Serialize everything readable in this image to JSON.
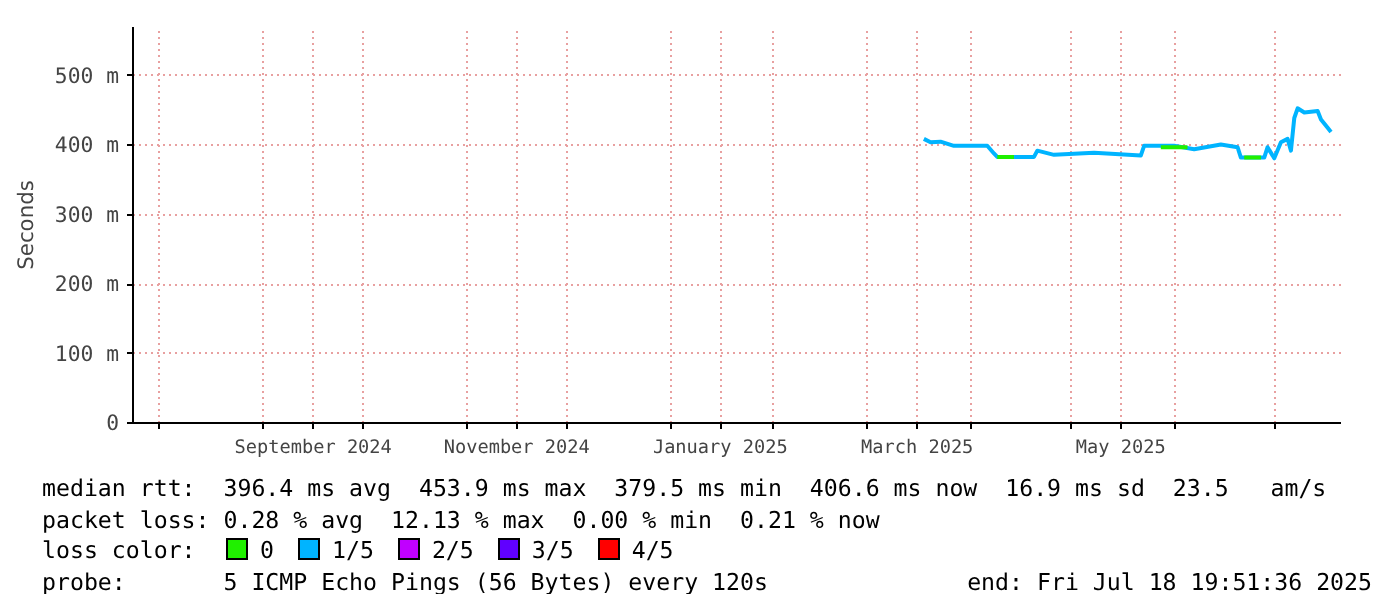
{
  "chart_data": {
    "type": "line",
    "ylabel": "Seconds",
    "xlim": [
      "2024-07-24",
      "2025-07-21"
    ],
    "xticks": [
      {
        "value": "2024-08-01",
        "label": null
      },
      {
        "value": "2024-09-01",
        "label": null
      },
      {
        "value": "2024-09-16",
        "label": "September 2024"
      },
      {
        "value": "2024-10-01",
        "label": null
      },
      {
        "value": "2024-11-01",
        "label": null
      },
      {
        "value": "2024-11-16",
        "label": "November 2024"
      },
      {
        "value": "2024-12-01",
        "label": null
      },
      {
        "value": "2025-01-01",
        "label": null
      },
      {
        "value": "2025-01-16",
        "label": "January 2025"
      },
      {
        "value": "2025-02-01",
        "label": null
      },
      {
        "value": "2025-03-01",
        "label": null
      },
      {
        "value": "2025-03-16",
        "label": "March 2025"
      },
      {
        "value": "2025-04-01",
        "label": null
      },
      {
        "value": "2025-05-01",
        "label": null
      },
      {
        "value": "2025-05-16",
        "label": "May 2025"
      },
      {
        "value": "2025-06-01",
        "label": null
      },
      {
        "value": "2025-07-01",
        "label": null
      }
    ],
    "ylim": [
      0,
      570
    ],
    "yticks": [
      0,
      {
        "value": 100,
        "label": "100 m"
      },
      {
        "value": 200,
        "label": "200 m"
      },
      {
        "value": 300,
        "label": "300 m"
      },
      {
        "value": 400,
        "label": "400 m"
      },
      {
        "value": 500,
        "label": "500 m"
      }
    ],
    "grid": true,
    "legend": "bottom",
    "legend_title": "loss color:",
    "series": [
      {
        "name": "0",
        "color": "#20f000",
        "x": [
          "2025-04-09",
          "2025-04-14",
          "2025-04-15",
          "2025-05-28",
          "2025-06-05",
          "2025-06-06",
          "2025-06-22",
          "2025-06-27"
        ],
        "values": [
          383,
          383,
          null,
          397,
          397,
          null,
          382,
          382
        ]
      },
      {
        "name": "1/5",
        "color": "#00b4ff",
        "x": [
          "2025-03-18",
          "2025-03-20",
          "2025-03-23",
          "2025-03-27",
          "2025-04-06",
          "2025-04-08",
          "2025-04-09",
          "2025-04-20",
          "2025-04-21",
          "2025-04-26",
          "2025-05-08",
          "2025-05-22",
          "2025-05-23",
          "2025-06-01",
          "2025-06-07",
          "2025-06-15",
          "2025-06-20",
          "2025-06-21",
          "2025-06-28",
          "2025-06-29",
          "2025-07-01",
          "2025-07-03",
          "2025-07-05",
          "2025-07-06",
          "2025-07-07",
          "2025-07-08",
          "2025-07-10",
          "2025-07-14",
          "2025-07-15",
          "2025-07-17",
          "2025-07-18"
        ],
        "values": [
          409,
          404,
          405,
          399,
          399,
          388,
          383,
          383,
          392,
          386,
          389,
          385,
          399,
          399,
          394,
          401,
          397,
          382,
          382,
          397,
          381,
          404,
          409,
          392,
          439,
          453,
          447,
          449,
          437,
          425,
          419
        ]
      },
      {
        "name": "2/5",
        "color": "#c000ff"
      },
      {
        "name": "3/5",
        "color": "#6000ff"
      },
      {
        "name": "4/5",
        "color": "#ff0000"
      }
    ],
    "annotations": [
      "median rtt:  396.4 ms avg  453.9 ms max  379.5 ms min  406.6 ms now  16.9 ms sd  23.5   am/s",
      "packet loss: 0.28 % avg  12.13 % max  0.00 % min  0.21 % now",
      "probe:       5 ICMP Echo Pings (56 Bytes) every 120s",
      "end: Fri Jul 18 19:51:36 2025"
    ]
  }
}
